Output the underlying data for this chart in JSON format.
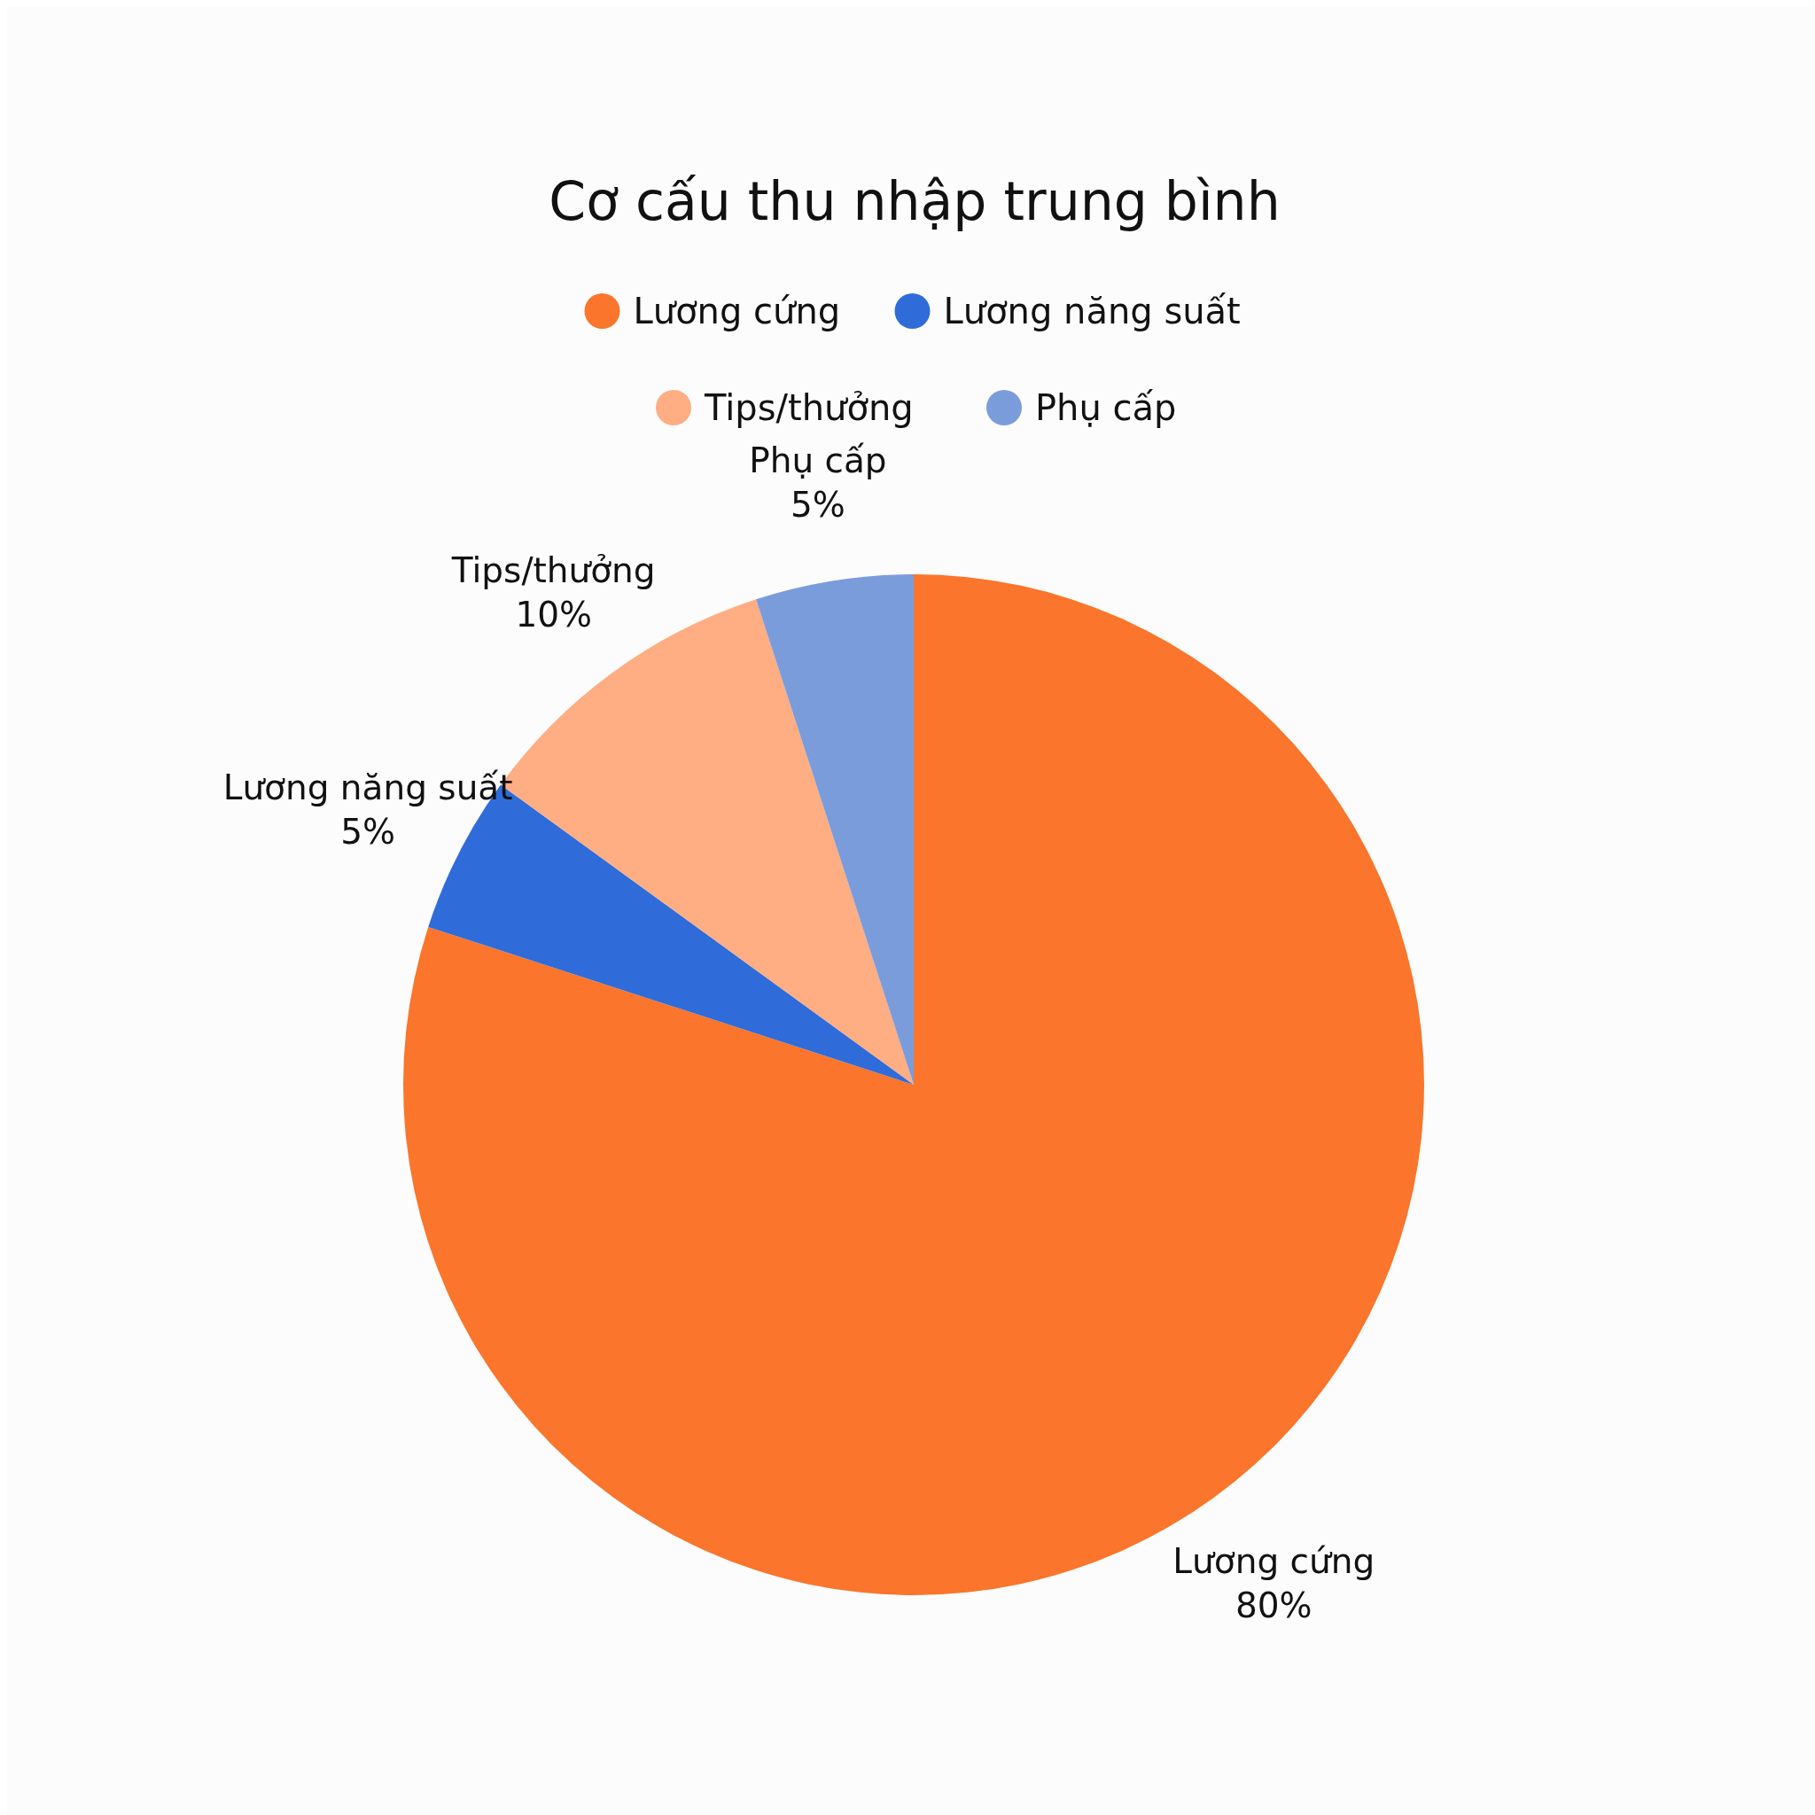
{
  "chart_data": {
    "type": "pie",
    "title": "Cơ cấu thu nhập trung bình",
    "categories": [
      "Lương cứng",
      "Lương năng suất",
      "Tips/thưởng",
      "Phụ cấp"
    ],
    "values": [
      80,
      5,
      10,
      5
    ],
    "colors": [
      "#fb752c",
      "#2f6cd9",
      "#ffad82",
      "#7b9cdb"
    ],
    "value_labels": [
      "80%",
      "5%",
      "10%",
      "5%"
    ],
    "legend": "top"
  }
}
